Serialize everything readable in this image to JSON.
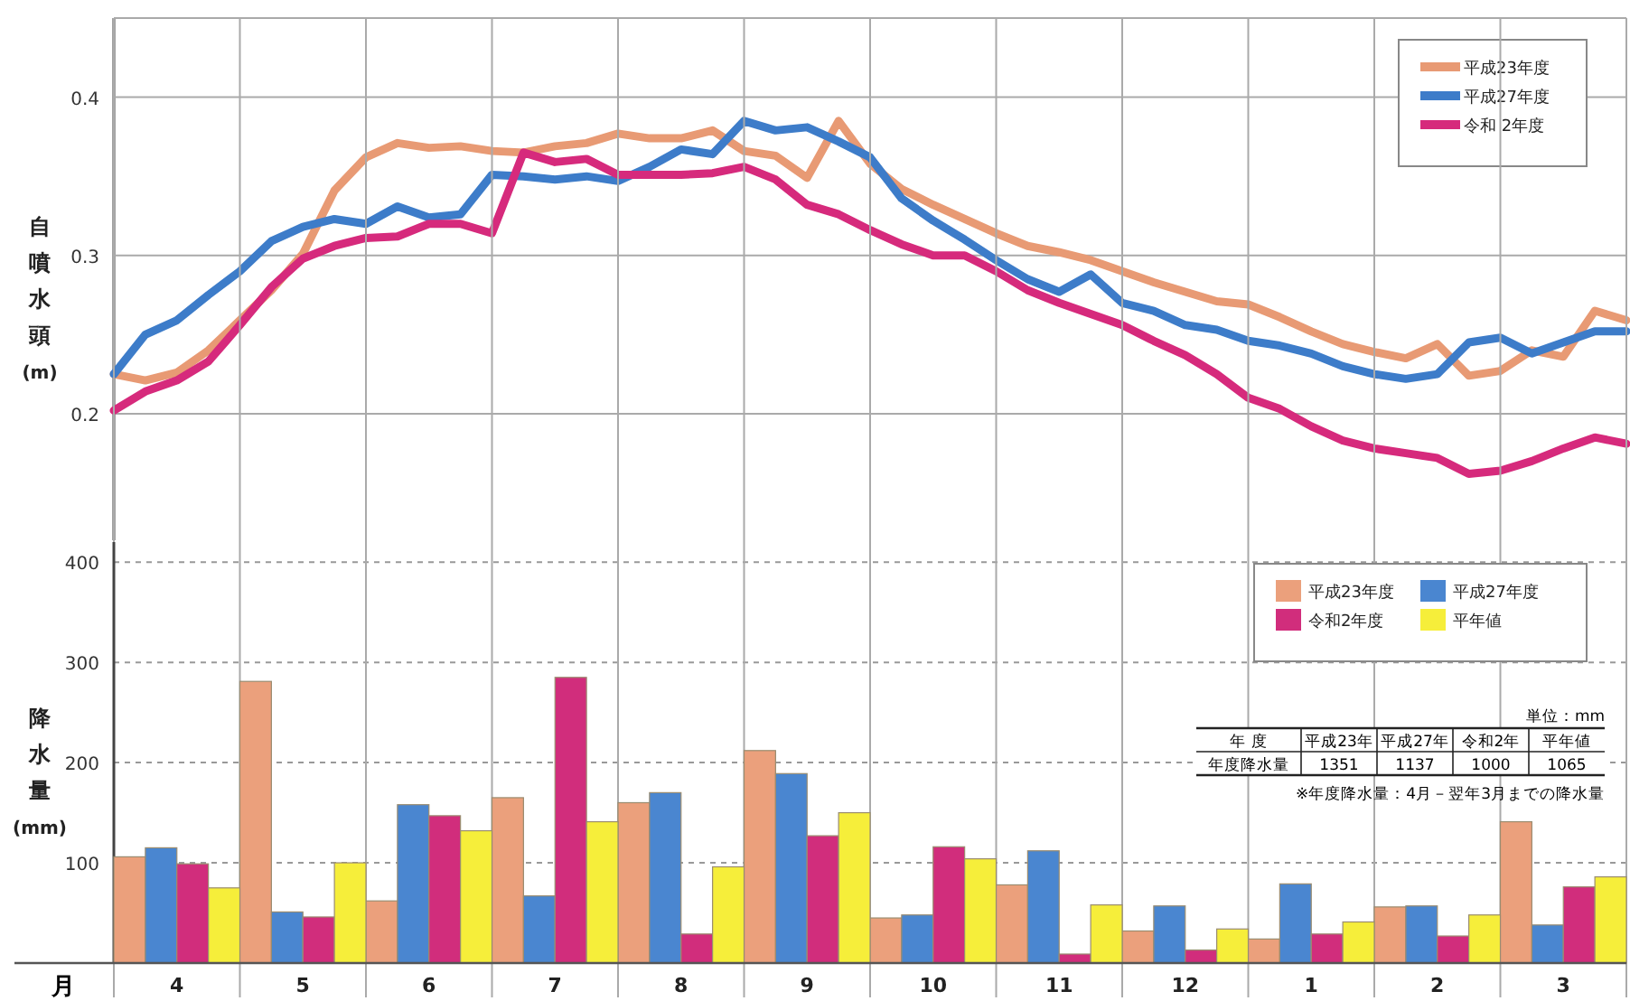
{
  "chart_data": [
    {
      "type": "line",
      "ylabel": "自噴水頭(m)",
      "categories": [
        null,
        null,
        null,
        null,
        null,
        null,
        null,
        null,
        null,
        null,
        null,
        null,
        null,
        null,
        null,
        null,
        null,
        null,
        null,
        null,
        null,
        null,
        null,
        null,
        null,
        null,
        null,
        null,
        null,
        null,
        null,
        null,
        null,
        null,
        null,
        null,
        null,
        null,
        null,
        null,
        null,
        null,
        null,
        null,
        null,
        null,
        null,
        null,
        null
      ],
      "ylim": [
        0.12,
        0.45
      ],
      "yticks": [
        0.2,
        0.3,
        0.4
      ],
      "grid": "y",
      "legend": "top right",
      "line_style": "solid",
      "series": [
        {
          "name": "平成23年度",
          "color": "#e89a74",
          "values": [
            0.225,
            0.221,
            0.226,
            0.24,
            0.259,
            0.278,
            0.301,
            0.341,
            0.362,
            0.371,
            0.368,
            0.369,
            0.366,
            0.365,
            0.369,
            0.371,
            0.377,
            0.374,
            0.374,
            0.379,
            0.366,
            0.363,
            0.349,
            0.385,
            0.358,
            0.342,
            0.332,
            0.323,
            0.314,
            0.306,
            0.302,
            0.297,
            0.29,
            0.283,
            0.277,
            0.271,
            0.269,
            0.261,
            0.252,
            0.244,
            0.239,
            0.235,
            0.244,
            0.224,
            0.227,
            0.24,
            0.236,
            0.265,
            0.259
          ]
        },
        {
          "name": "平成27年度",
          "color": "#3d7cc9",
          "values": [
            0.225,
            0.25,
            0.259,
            0.275,
            0.29,
            0.309,
            0.318,
            0.323,
            0.32,
            0.331,
            0.324,
            0.326,
            0.351,
            0.35,
            0.348,
            0.35,
            0.347,
            0.356,
            0.367,
            0.364,
            0.385,
            0.379,
            0.381,
            0.372,
            0.362,
            0.336,
            0.322,
            0.31,
            0.297,
            0.285,
            0.277,
            0.288,
            0.27,
            0.265,
            0.256,
            0.253,
            0.246,
            0.243,
            0.238,
            0.23,
            0.225,
            0.222,
            0.225,
            0.245,
            0.248,
            0.238,
            0.245,
            0.252,
            0.252
          ]
        },
        {
          "name": "令和 2年度",
          "color": "#d62a7c",
          "values": [
            0.202,
            0.214,
            0.221,
            0.233,
            0.256,
            0.28,
            0.298,
            0.306,
            0.311,
            0.312,
            0.32,
            0.32,
            0.314,
            0.365,
            0.359,
            0.361,
            0.351,
            0.351,
            0.351,
            0.352,
            0.356,
            0.348,
            0.332,
            0.326,
            0.316,
            0.307,
            0.3,
            0.3,
            0.29,
            0.278,
            0.27,
            0.263,
            0.256,
            0.246,
            0.237,
            0.225,
            0.21,
            0.203,
            0.192,
            0.183,
            0.178,
            0.175,
            0.172,
            0.162,
            0.164,
            0.17,
            0.178,
            0.185,
            0.181
          ]
        }
      ]
    },
    {
      "type": "bar",
      "ylabel": "降水量(mm)",
      "xlabel": "月",
      "categories": [
        "4",
        "5",
        "6",
        "7",
        "8",
        "9",
        "10",
        "11",
        "12",
        "1",
        "2",
        "3"
      ],
      "ylim": [
        0,
        420
      ],
      "yticks": [
        100,
        200,
        300,
        400
      ],
      "grid": "y",
      "legend": "top right",
      "series": [
        {
          "name": "平成23年度",
          "color": "#eba07c",
          "values": [
            106,
            281,
            62,
            165,
            160,
            212,
            45,
            78,
            32,
            24,
            56,
            141
          ]
        },
        {
          "name": "平成27年度",
          "color": "#4a86d0",
          "values": [
            115,
            51,
            158,
            67,
            170,
            189,
            48,
            112,
            57,
            79,
            57,
            38
          ]
        },
        {
          "name": "令和2年度",
          "color": "#d12d7c",
          "values": [
            99,
            46,
            147,
            285,
            29,
            127,
            116,
            9,
            13,
            29,
            27,
            76
          ]
        },
        {
          "name": "平年値",
          "color": "#f6ee3a",
          "values": [
            75,
            100,
            132,
            141,
            96,
            150,
            104,
            58,
            34,
            41,
            48,
            86
          ]
        }
      ]
    },
    {
      "type": "other",
      "categories": [
        "平成23年",
        "平成27年",
        "令和2年",
        "平年値"
      ],
      "values": [
        1351,
        1137,
        1000,
        1065
      ],
      "data_labels": true,
      "annotations": [
        "単位：mm",
        "年 度",
        "年度降水量",
        "※年度降水量：4月－翌年3月までの降水量"
      ]
    }
  ]
}
